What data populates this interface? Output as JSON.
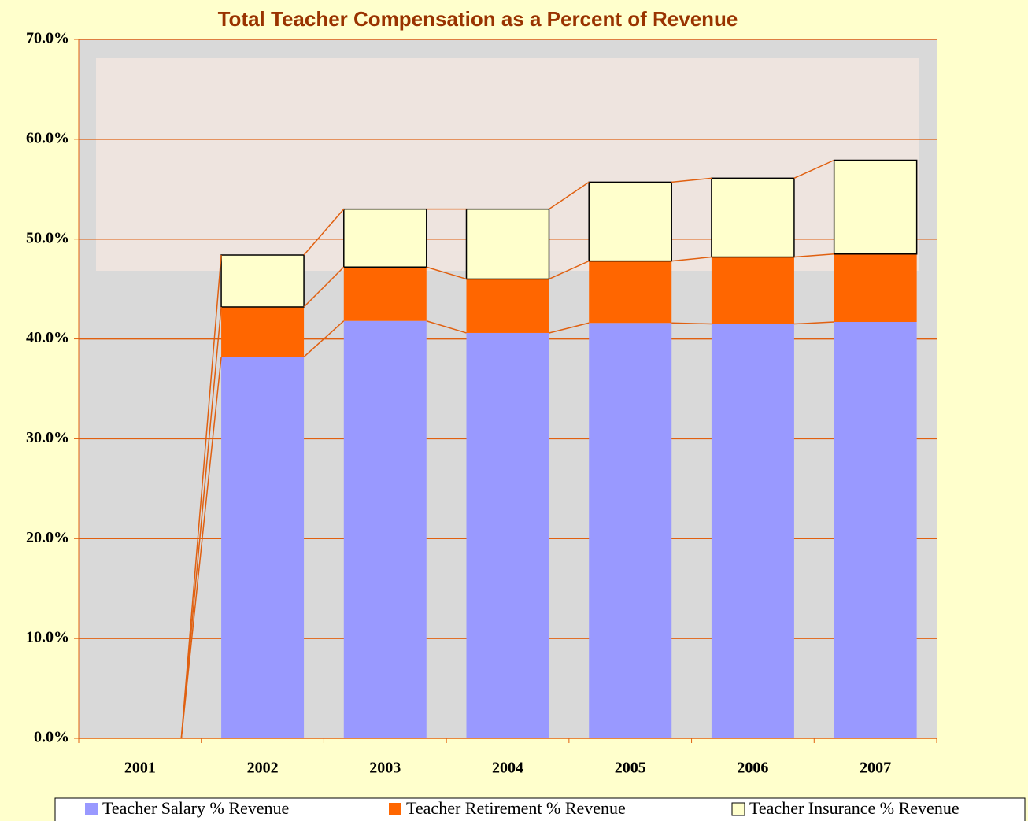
{
  "chart_data": {
    "type": "stacked_bar",
    "title": "Total Teacher Compensation as a Percent of Revenue",
    "categories": [
      "2001",
      "2002",
      "2003",
      "2004",
      "2005",
      "2006",
      "2007"
    ],
    "series": [
      {
        "name": "Teacher Salary % Revenue",
        "color": "#9999ff",
        "values": [
          0,
          38.2,
          41.8,
          40.6,
          41.6,
          41.5,
          41.7
        ]
      },
      {
        "name": "Teacher Retirement % Revenue",
        "color": "#ff6600",
        "values": [
          0,
          5.0,
          5.4,
          5.4,
          6.2,
          6.7,
          6.8
        ]
      },
      {
        "name": "Teacher Insurance % Revenue",
        "color": "#ffffcc",
        "values": [
          0,
          5.2,
          5.8,
          7.0,
          7.9,
          7.9,
          9.4
        ]
      }
    ],
    "ylim": [
      0,
      70
    ],
    "yticks": [
      {
        "value": 0,
        "label": "0.0%"
      },
      {
        "value": 10,
        "label": "10.0%"
      },
      {
        "value": 20,
        "label": "20.0%"
      },
      {
        "value": 30,
        "label": "30.0%"
      },
      {
        "value": 40,
        "label": "40.0%"
      },
      {
        "value": 50,
        "label": "50.0%"
      },
      {
        "value": 60,
        "label": "60.0%"
      },
      {
        "value": 70,
        "label": "70.0%"
      }
    ],
    "grid": true,
    "legend": "bottom"
  }
}
